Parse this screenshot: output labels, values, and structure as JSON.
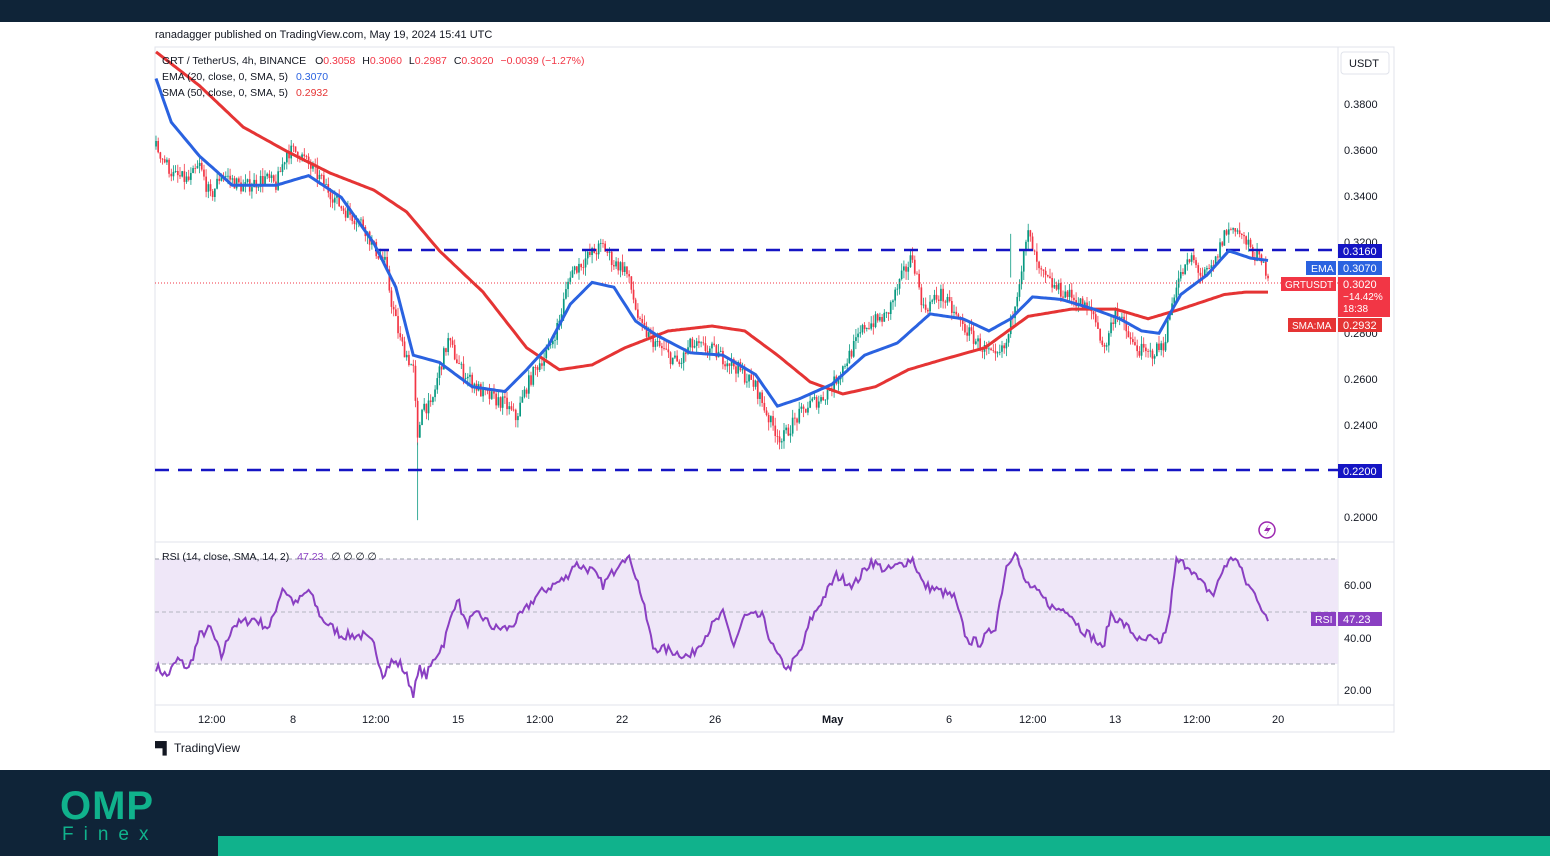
{
  "publisher": "ranadagger published on TradingView.com, May 19, 2024 15:41 UTC",
  "footer_logo": "TradingView",
  "brand": {
    "name_top": "OMP",
    "name_bottom": "Finex",
    "color": "#10b28c",
    "background": "#0f2438"
  },
  "legend": {
    "symbol": "GRT / TetherUS, 4h, BINANCE",
    "ohlc": [
      {
        "k": "O",
        "v": "0.3058"
      },
      {
        "k": "H",
        "v": "0.3060"
      },
      {
        "k": "L",
        "v": "0.2987"
      },
      {
        "k": "C",
        "v": "0.3020"
      }
    ],
    "change": "−0.0039 (−1.27%)",
    "ema_label": "EMA (20, close, 0, SMA, 5)",
    "ema_value": "0.3070",
    "sma_label": "SMA (50, close, 0, SMA, 5)",
    "sma_value": "0.2932",
    "rsi_label": "RSI (14, close, SMA, 14, 2)",
    "rsi_value": "47.23",
    "rsi_extra": "∅ ∅ ∅ ∅"
  },
  "currency": "USDT",
  "badges": {
    "res": "0.3160",
    "sup": "0.2200",
    "ema_tag": "EMA",
    "ema_val": "0.3070",
    "sym_tag": "GRTUSDT",
    "sym_val": "0.3020",
    "sym_chg": "−14.42%",
    "sym_time": "18:38",
    "sma_tag": "SMA:MA",
    "sma_val": "0.2932",
    "rsi_tag": "RSI",
    "rsi_val": "47.23"
  },
  "chart_data": {
    "type": "candlestick",
    "price_axis": {
      "ticks": [
        "0.3800",
        "0.3600",
        "0.3400",
        "0.3200",
        "0.2800",
        "0.2600",
        "0.2400",
        "0.2000"
      ],
      "range": [
        0.191,
        0.395
      ]
    },
    "rsi_axis": {
      "ticks": [
        "60.00",
        "40.00",
        "20.00"
      ],
      "range": [
        12,
        80
      ],
      "bands": [
        30,
        50,
        70
      ]
    },
    "time_axis": [
      "12:00",
      "8",
      "12:00",
      "15",
      "12:00",
      "22",
      "26",
      "May",
      "6",
      "12:00",
      "13",
      "12:00",
      "20"
    ],
    "horizontal_levels": [
      0.316,
      0.22
    ],
    "ema_anchors": [
      [
        0,
        0.382
      ],
      [
        7,
        0.364
      ],
      [
        20,
        0.35
      ],
      [
        35,
        0.338
      ],
      [
        55,
        0.338
      ],
      [
        70,
        0.342
      ],
      [
        85,
        0.333
      ],
      [
        100,
        0.314
      ],
      [
        110,
        0.296
      ],
      [
        118,
        0.268
      ],
      [
        130,
        0.265
      ],
      [
        145,
        0.255
      ],
      [
        160,
        0.253
      ],
      [
        170,
        0.262
      ],
      [
        180,
        0.272
      ],
      [
        190,
        0.289
      ],
      [
        200,
        0.298
      ],
      [
        210,
        0.296
      ],
      [
        220,
        0.282
      ],
      [
        230,
        0.276
      ],
      [
        245,
        0.269
      ],
      [
        260,
        0.268
      ],
      [
        275,
        0.26
      ],
      [
        285,
        0.247
      ],
      [
        295,
        0.25
      ],
      [
        310,
        0.256
      ],
      [
        325,
        0.268
      ],
      [
        340,
        0.273
      ],
      [
        355,
        0.285
      ],
      [
        370,
        0.283
      ],
      [
        382,
        0.278
      ],
      [
        392,
        0.283
      ],
      [
        402,
        0.292
      ],
      [
        415,
        0.291
      ],
      [
        430,
        0.287
      ],
      [
        442,
        0.283
      ],
      [
        452,
        0.278
      ],
      [
        460,
        0.277
      ],
      [
        470,
        0.293
      ],
      [
        482,
        0.301
      ],
      [
        492,
        0.311
      ],
      [
        502,
        0.308
      ],
      [
        510,
        0.307
      ]
    ],
    "sma_anchors": [
      [
        0,
        0.393
      ],
      [
        20,
        0.379
      ],
      [
        40,
        0.362
      ],
      [
        60,
        0.352
      ],
      [
        80,
        0.343
      ],
      [
        100,
        0.336
      ],
      [
        115,
        0.327
      ],
      [
        130,
        0.311
      ],
      [
        150,
        0.294
      ],
      [
        170,
        0.271
      ],
      [
        185,
        0.262
      ],
      [
        200,
        0.264
      ],
      [
        215,
        0.271
      ],
      [
        235,
        0.278
      ],
      [
        255,
        0.28
      ],
      [
        270,
        0.278
      ],
      [
        285,
        0.268
      ],
      [
        300,
        0.257
      ],
      [
        315,
        0.252
      ],
      [
        330,
        0.255
      ],
      [
        345,
        0.262
      ],
      [
        360,
        0.266
      ],
      [
        380,
        0.271
      ],
      [
        400,
        0.284
      ],
      [
        420,
        0.287
      ],
      [
        440,
        0.287
      ],
      [
        455,
        0.283
      ],
      [
        470,
        0.287
      ],
      [
        490,
        0.293
      ],
      [
        500,
        0.294
      ],
      [
        510,
        0.294
      ]
    ],
    "price_anchors": [
      [
        0,
        0.354
      ],
      [
        8,
        0.342
      ],
      [
        15,
        0.34
      ],
      [
        20,
        0.346
      ],
      [
        25,
        0.333
      ],
      [
        30,
        0.343
      ],
      [
        40,
        0.337
      ],
      [
        50,
        0.341
      ],
      [
        55,
        0.338
      ],
      [
        60,
        0.352
      ],
      [
        65,
        0.352
      ],
      [
        75,
        0.341
      ],
      [
        85,
        0.329
      ],
      [
        95,
        0.322
      ],
      [
        100,
        0.312
      ],
      [
        105,
        0.306
      ],
      [
        108,
        0.29
      ],
      [
        112,
        0.274
      ],
      [
        118,
        0.262
      ],
      [
        120,
        0.232
      ],
      [
        122,
        0.248
      ],
      [
        126,
        0.246
      ],
      [
        130,
        0.262
      ],
      [
        134,
        0.274
      ],
      [
        140,
        0.262
      ],
      [
        150,
        0.252
      ],
      [
        160,
        0.248
      ],
      [
        165,
        0.242
      ],
      [
        170,
        0.255
      ],
      [
        175,
        0.264
      ],
      [
        180,
        0.27
      ],
      [
        185,
        0.282
      ],
      [
        190,
        0.302
      ],
      [
        200,
        0.31
      ],
      [
        205,
        0.313
      ],
      [
        210,
        0.306
      ],
      [
        215,
        0.304
      ],
      [
        218,
        0.295
      ],
      [
        222,
        0.28
      ],
      [
        230,
        0.272
      ],
      [
        240,
        0.264
      ],
      [
        245,
        0.272
      ],
      [
        255,
        0.27
      ],
      [
        265,
        0.264
      ],
      [
        275,
        0.255
      ],
      [
        282,
        0.24
      ],
      [
        287,
        0.233
      ],
      [
        292,
        0.24
      ],
      [
        300,
        0.248
      ],
      [
        305,
        0.25
      ],
      [
        310,
        0.255
      ],
      [
        318,
        0.268
      ],
      [
        325,
        0.28
      ],
      [
        335,
        0.284
      ],
      [
        342,
        0.3
      ],
      [
        347,
        0.309
      ],
      [
        352,
        0.287
      ],
      [
        360,
        0.293
      ],
      [
        370,
        0.28
      ],
      [
        378,
        0.272
      ],
      [
        385,
        0.266
      ],
      [
        390,
        0.272
      ],
      [
        395,
        0.295
      ],
      [
        400,
        0.318
      ],
      [
        405,
        0.302
      ],
      [
        412,
        0.296
      ],
      [
        420,
        0.292
      ],
      [
        430,
        0.285
      ],
      [
        435,
        0.27
      ],
      [
        440,
        0.287
      ],
      [
        448,
        0.272
      ],
      [
        455,
        0.268
      ],
      [
        462,
        0.272
      ],
      [
        468,
        0.298
      ],
      [
        475,
        0.308
      ],
      [
        480,
        0.3
      ],
      [
        485,
        0.304
      ],
      [
        490,
        0.318
      ],
      [
        495,
        0.321
      ],
      [
        500,
        0.314
      ],
      [
        506,
        0.307
      ],
      [
        510,
        0.302
      ]
    ],
    "rsi_anchors": [
      [
        0,
        28
      ],
      [
        5,
        24
      ],
      [
        10,
        31
      ],
      [
        15,
        27
      ],
      [
        20,
        41
      ],
      [
        25,
        44
      ],
      [
        30,
        32
      ],
      [
        35,
        45
      ],
      [
        45,
        48
      ],
      [
        52,
        44
      ],
      [
        58,
        61
      ],
      [
        64,
        54
      ],
      [
        70,
        60
      ],
      [
        76,
        48
      ],
      [
        85,
        41
      ],
      [
        95,
        41
      ],
      [
        100,
        37
      ],
      [
        104,
        25
      ],
      [
        108,
        30
      ],
      [
        112,
        29
      ],
      [
        115,
        24
      ],
      [
        118,
        17
      ],
      [
        121,
        27
      ],
      [
        124,
        24
      ],
      [
        128,
        32
      ],
      [
        132,
        38
      ],
      [
        138,
        57
      ],
      [
        142,
        46
      ],
      [
        148,
        50
      ],
      [
        155,
        44
      ],
      [
        162,
        44
      ],
      [
        168,
        50
      ],
      [
        175,
        58
      ],
      [
        182,
        62
      ],
      [
        188,
        65
      ],
      [
        192,
        71
      ],
      [
        200,
        68
      ],
      [
        205,
        62
      ],
      [
        210,
        68
      ],
      [
        214,
        74
      ],
      [
        218,
        72
      ],
      [
        222,
        60
      ],
      [
        228,
        36
      ],
      [
        235,
        35
      ],
      [
        245,
        32
      ],
      [
        255,
        45
      ],
      [
        260,
        50
      ],
      [
        265,
        37
      ],
      [
        270,
        49
      ],
      [
        278,
        49
      ],
      [
        283,
        36
      ],
      [
        286,
        31
      ],
      [
        290,
        27
      ],
      [
        296,
        35
      ],
      [
        300,
        47
      ],
      [
        305,
        55
      ],
      [
        312,
        66
      ],
      [
        320,
        62
      ],
      [
        328,
        72
      ],
      [
        335,
        68
      ],
      [
        340,
        70
      ],
      [
        347,
        73
      ],
      [
        352,
        62
      ],
      [
        358,
        60
      ],
      [
        366,
        57
      ],
      [
        372,
        39
      ],
      [
        378,
        38
      ],
      [
        385,
        45
      ],
      [
        390,
        70
      ],
      [
        394,
        77
      ],
      [
        398,
        64
      ],
      [
        404,
        59
      ],
      [
        412,
        52
      ],
      [
        418,
        52
      ],
      [
        424,
        44
      ],
      [
        430,
        40
      ],
      [
        434,
        35
      ],
      [
        438,
        50
      ],
      [
        446,
        44
      ],
      [
        452,
        38
      ],
      [
        456,
        40
      ],
      [
        460,
        37
      ],
      [
        464,
        45
      ],
      [
        468,
        72
      ],
      [
        474,
        70
      ],
      [
        478,
        64
      ],
      [
        485,
        58
      ],
      [
        490,
        70
      ],
      [
        495,
        74
      ],
      [
        500,
        63
      ],
      [
        505,
        57
      ],
      [
        510,
        47
      ]
    ]
  }
}
